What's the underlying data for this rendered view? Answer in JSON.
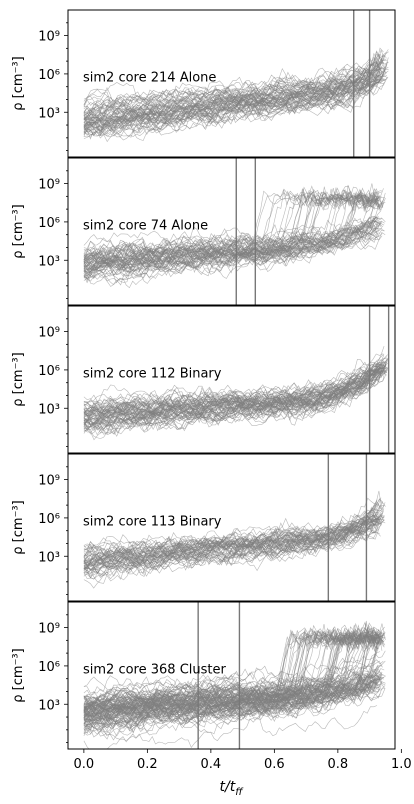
{
  "figure": {
    "xlabel": "t/t_ff",
    "ylabel": "ρ [cm⁻³]"
  },
  "chart_data": [
    {
      "type": "line",
      "label": "sim2 core 214 Alone",
      "xlim": [
        -0.05,
        0.98
      ],
      "ylog": true,
      "ylim_exp": [
        -0.5,
        11
      ],
      "yticks": [
        {
          "exp": 3,
          "label": "10³"
        },
        {
          "exp": 6,
          "label": "10⁶"
        },
        {
          "exp": 9,
          "label": "10⁹"
        }
      ],
      "xticks": [],
      "vlines": [
        0.85,
        0.9
      ],
      "end": 0.96,
      "trend_start": 2.3,
      "trend_mid": 4.4,
      "trend_end": 6.3,
      "rise_at": 0.7,
      "spread": 1.1,
      "n_tracks": 70,
      "high_branch": {
        "t0": 0.87,
        "level": 7.2,
        "fraction": 0.45
      }
    },
    {
      "type": "line",
      "label": "sim2 core 74 Alone",
      "xlim": [
        -0.05,
        0.98
      ],
      "ylog": true,
      "ylim_exp": [
        -0.5,
        11
      ],
      "yticks": [
        {
          "exp": 3,
          "label": "10³"
        },
        {
          "exp": 6,
          "label": "10⁶"
        },
        {
          "exp": 9,
          "label": "10⁹"
        }
      ],
      "xticks": [],
      "vlines": [
        0.48,
        0.54
      ],
      "end": 0.95,
      "trend_start": 2.8,
      "trend_mid": 3.8,
      "trend_end": 5.8,
      "rise_at": 0.5,
      "spread": 0.8,
      "n_tracks": 70,
      "high_branch": {
        "t0": 0.52,
        "level": 7.8,
        "fraction": 0.5
      }
    },
    {
      "type": "line",
      "label": "sim2 core 112 Binary",
      "xlim": [
        -0.05,
        0.98
      ],
      "ylog": true,
      "ylim_exp": [
        -0.5,
        11
      ],
      "yticks": [
        {
          "exp": 3,
          "label": "10³"
        },
        {
          "exp": 6,
          "label": "10⁶"
        },
        {
          "exp": 9,
          "label": "10⁹"
        }
      ],
      "xticks": [],
      "vlines": [
        0.9,
        0.96
      ],
      "end": 0.96,
      "trend_start": 2.4,
      "trend_mid": 3.5,
      "trend_end": 6.5,
      "rise_at": 0.65,
      "spread": 0.7,
      "n_tracks": 70,
      "high_branch": {
        "t0": 0.92,
        "level": 7.0,
        "fraction": 0.3
      }
    },
    {
      "type": "line",
      "label": "sim2 core 113 Binary",
      "xlim": [
        -0.05,
        0.98
      ],
      "ylog": true,
      "ylim_exp": [
        -0.5,
        11
      ],
      "yticks": [
        {
          "exp": 3,
          "label": "10³"
        },
        {
          "exp": 6,
          "label": "10⁶"
        },
        {
          "exp": 9,
          "label": "10⁹"
        }
      ],
      "xticks": [],
      "vlines": [
        0.77,
        0.89
      ],
      "end": 0.95,
      "trend_start": 2.6,
      "trend_mid": 4.2,
      "trend_end": 6.2,
      "rise_at": 0.65,
      "spread": 0.6,
      "n_tracks": 60,
      "high_branch": {
        "t0": 0.85,
        "level": 7.2,
        "fraction": 0.4
      }
    },
    {
      "type": "line",
      "label": "sim2 core 368 Cluster",
      "xlim": [
        -0.05,
        0.98
      ],
      "ylog": true,
      "ylim_exp": [
        -0.5,
        11
      ],
      "yticks": [
        {
          "exp": 3,
          "label": "10³"
        },
        {
          "exp": 6,
          "label": "10⁶"
        },
        {
          "exp": 9,
          "label": "10⁹"
        }
      ],
      "xticks": [
        {
          "v": 0.0,
          "label": "0.0"
        },
        {
          "v": 0.2,
          "label": "0.2"
        },
        {
          "v": 0.4,
          "label": "0.4"
        },
        {
          "v": 0.6,
          "label": "0.6"
        },
        {
          "v": 0.8,
          "label": "0.8"
        },
        {
          "v": 1.0,
          "label": "1.0"
        }
      ],
      "vlines": [
        0.36,
        0.49
      ],
      "end": 0.95,
      "trend_start": 2.5,
      "trend_mid": 3.6,
      "trend_end": 5.2,
      "rise_at": 0.55,
      "spread": 1.2,
      "n_tracks": 120,
      "high_branch": {
        "t0": 0.6,
        "level": 8.2,
        "fraction": 0.55
      }
    }
  ]
}
